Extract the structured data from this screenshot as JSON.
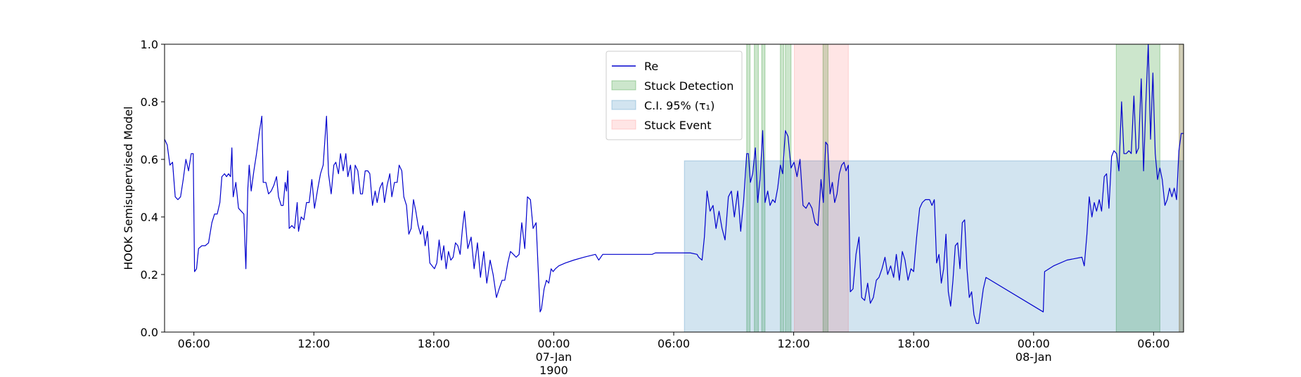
{
  "chart_data": {
    "type": "line",
    "y_label": "HOOK Semisupervised Model",
    "xlim": [
      "1900-01-06 04:32",
      "1900-01-08 07:30"
    ],
    "ylim": [
      0,
      1
    ],
    "yticks": [
      {
        "value": 0,
        "label": "0.0"
      },
      0.2,
      0.4,
      0.6,
      0.8,
      {
        "value": 1,
        "label": "1.0"
      }
    ],
    "xticks": [
      {
        "value": "1900-01-06 06:00",
        "label": "06:00"
      },
      {
        "value": "1900-01-06 12:00",
        "label": "12:00"
      },
      {
        "value": "1900-01-06 18:00",
        "label": "18:00"
      },
      {
        "value": "1900-01-07 00:00",
        "label": "00:00\n07-Jan\n1900"
      },
      {
        "value": "1900-01-07 06:00",
        "label": "06:00"
      },
      {
        "value": "1900-01-07 12:00",
        "label": "12:00"
      },
      {
        "value": "1900-01-07 18:00",
        "label": "18:00"
      },
      {
        "value": "1900-01-08 00:00",
        "label": "00:00\n08-Jan"
      },
      {
        "value": "1900-01-08 06:00",
        "label": "06:00"
      }
    ],
    "legend": "upper center",
    "series": [
      {
        "name": "Re",
        "type": "line",
        "color": "#0000cd",
        "x": [
          "1900-01-06 04:32",
          "1900-01-06 04:40",
          "1900-01-06 04:48",
          "1900-01-06 04:56",
          "1900-01-06 05:04",
          "1900-01-06 05:12",
          "1900-01-06 05:20",
          "1900-01-06 05:28",
          "1900-01-06 05:36",
          "1900-01-06 05:44",
          "1900-01-06 05:52",
          "1900-01-06 05:58",
          "1900-01-06 06:02",
          "1900-01-06 06:08",
          "1900-01-06 06:14",
          "1900-01-06 06:24",
          "1900-01-06 06:34",
          "1900-01-06 06:44",
          "1900-01-06 06:54",
          "1900-01-06 07:02",
          "1900-01-06 07:10",
          "1900-01-06 07:18",
          "1900-01-06 07:24",
          "1900-01-06 07:32",
          "1900-01-06 07:38",
          "1900-01-06 07:44",
          "1900-01-06 07:50",
          "1900-01-06 07:54",
          "1900-01-06 07:58",
          "1900-01-06 08:06",
          "1900-01-06 08:14",
          "1900-01-06 08:22",
          "1900-01-06 08:30",
          "1900-01-06 08:36",
          "1900-01-06 08:42",
          "1900-01-06 08:46",
          "1900-01-06 08:52",
          "1900-01-06 09:00",
          "1900-01-06 09:08",
          "1900-01-06 09:16",
          "1900-01-06 09:24",
          "1900-01-06 09:28",
          "1900-01-06 09:36",
          "1900-01-06 09:44",
          "1900-01-06 09:52",
          "1900-01-06 10:00",
          "1900-01-06 10:08",
          "1900-01-06 10:14",
          "1900-01-06 10:22",
          "1900-01-06 10:28",
          "1900-01-06 10:34",
          "1900-01-06 10:38",
          "1900-01-06 10:42",
          "1900-01-06 10:46",
          "1900-01-06 10:54",
          "1900-01-06 11:02",
          "1900-01-06 11:10",
          "1900-01-06 11:14",
          "1900-01-06 11:22",
          "1900-01-06 11:30",
          "1900-01-06 11:38",
          "1900-01-06 11:46",
          "1900-01-06 11:54",
          "1900-01-06 12:02",
          "1900-01-06 12:12",
          "1900-01-06 12:20",
          "1900-01-06 12:28",
          "1900-01-06 12:38",
          "1900-01-06 12:44",
          "1900-01-06 12:52",
          "1900-01-06 13:00",
          "1900-01-06 13:06",
          "1900-01-06 13:14",
          "1900-01-06 13:20",
          "1900-01-06 13:28",
          "1900-01-06 13:36",
          "1900-01-06 13:42",
          "1900-01-06 13:50",
          "1900-01-06 13:58",
          "1900-01-06 14:04",
          "1900-01-06 14:12",
          "1900-01-06 14:20",
          "1900-01-06 14:26",
          "1900-01-06 14:34",
          "1900-01-06 14:42",
          "1900-01-06 14:48",
          "1900-01-06 14:56",
          "1900-01-06 15:04",
          "1900-01-06 15:10",
          "1900-01-06 15:18",
          "1900-01-06 15:26",
          "1900-01-06 15:32",
          "1900-01-06 15:40",
          "1900-01-06 15:48",
          "1900-01-06 15:54",
          "1900-01-06 16:02",
          "1900-01-06 16:10",
          "1900-01-06 16:16",
          "1900-01-06 16:24",
          "1900-01-06 16:30",
          "1900-01-06 16:38",
          "1900-01-06 16:45",
          "1900-01-06 16:52",
          "1900-01-06 16:59",
          "1900-01-06 17:06",
          "1900-01-06 17:13",
          "1900-01-06 17:20",
          "1900-01-06 17:27",
          "1900-01-06 17:34",
          "1900-01-06 17:41",
          "1900-01-06 17:48",
          "1900-01-06 17:55",
          "1900-01-06 18:02",
          "1900-01-06 18:09",
          "1900-01-06 18:16",
          "1900-01-06 18:23",
          "1900-01-06 18:30",
          "1900-01-06 18:37",
          "1900-01-06 18:44",
          "1900-01-06 18:51",
          "1900-01-06 18:58",
          "1900-01-06 19:05",
          "1900-01-06 19:12",
          "1900-01-06 19:19",
          "1900-01-06 19:26",
          "1900-01-06 19:32",
          "1900-01-06 19:42",
          "1900-01-06 19:52",
          "1900-01-06 20:01",
          "1900-01-06 20:11",
          "1900-01-06 20:20",
          "1900-01-06 20:30",
          "1900-01-06 20:39",
          "1900-01-06 20:49",
          "1900-01-06 20:58",
          "1900-01-06 21:08",
          "1900-01-06 21:16",
          "1900-01-06 21:25",
          "1900-01-06 21:33",
          "1900-01-06 21:42",
          "1900-01-06 21:50",
          "1900-01-06 21:59",
          "1900-01-06 22:07",
          "1900-01-06 22:16",
          "1900-01-06 22:24",
          "1900-01-06 22:33",
          "1900-01-06 22:41",
          "1900-01-06 22:50",
          "1900-01-06 22:58",
          "1900-01-06 23:07",
          "1900-01-06 23:19",
          "1900-01-06 23:23",
          "1900-01-06 23:31",
          "1900-01-06 23:38",
          "1900-01-06 23:45",
          "1900-01-06 23:52",
          "1900-01-06 23:58",
          "1900-01-07 00:05",
          "1900-01-07 00:15",
          "1900-01-07 00:35",
          "1900-01-07 01:00",
          "1900-01-07 01:30",
          "1900-01-07 02:05",
          "1900-01-07 02:15",
          "1900-01-07 02:27",
          "1900-01-07 04:55",
          "1900-01-07 05:05",
          "1900-01-07 06:50",
          "1900-01-07 07:10",
          "1900-01-07 07:15",
          "1900-01-07 07:25",
          "1900-01-07 07:32",
          "1900-01-07 07:40",
          "1900-01-07 07:49",
          "1900-01-07 07:58",
          "1900-01-07 08:07",
          "1900-01-07 08:16",
          "1900-01-07 08:25",
          "1900-01-07 08:34",
          "1900-01-07 08:44",
          "1900-01-07 08:53",
          "1900-01-07 09:02",
          "1900-01-07 09:12",
          "1900-01-07 09:21",
          "1900-01-07 09:30",
          "1900-01-07 09:39",
          "1900-01-07 09:44",
          "1900-01-07 09:50",
          "1900-01-07 09:57",
          "1900-01-07 10:05",
          "1900-01-07 10:12",
          "1900-01-07 10:19",
          "1900-01-07 10:27",
          "1900-01-07 10:34",
          "1900-01-07 10:42",
          "1900-01-07 10:49",
          "1900-01-07 10:57",
          "1900-01-07 11:04",
          "1900-01-07 11:12",
          "1900-01-07 11:20",
          "1900-01-07 11:27",
          "1900-01-07 11:35",
          "1900-01-07 11:43",
          "1900-01-07 11:52",
          "1900-01-07 12:01",
          "1900-01-07 12:10",
          "1900-01-07 12:19",
          "1900-01-07 12:28",
          "1900-01-07 12:37",
          "1900-01-07 12:46",
          "1900-01-07 12:55",
          "1900-01-07 13:04",
          "1900-01-07 13:13",
          "1900-01-07 13:22",
          "1900-01-07 13:29",
          "1900-01-07 13:36",
          "1900-01-07 13:42",
          "1900-01-07 13:49",
          "1900-01-07 13:56",
          "1900-01-07 14:03",
          "1900-01-07 14:10",
          "1900-01-07 14:17",
          "1900-01-07 14:24",
          "1900-01-07 14:31",
          "1900-01-07 14:37",
          "1900-01-07 14:44",
          "1900-01-07 14:50",
          "1900-01-07 14:58",
          "1900-01-07 15:07",
          "1900-01-07 15:16",
          "1900-01-07 15:24",
          "1900-01-07 15:33",
          "1900-01-07 15:42",
          "1900-01-07 15:50",
          "1900-01-07 15:59",
          "1900-01-07 16:08",
          "1900-01-07 16:16",
          "1900-01-07 16:25",
          "1900-01-07 16:34",
          "1900-01-07 16:42",
          "1900-01-07 16:51",
          "1900-01-07 17:00",
          "1900-01-07 17:08",
          "1900-01-07 17:17",
          "1900-01-07 17:26",
          "1900-01-07 17:34",
          "1900-01-07 17:43",
          "1900-01-07 17:52",
          "1900-01-07 18:00",
          "1900-01-07 18:09",
          "1900-01-07 18:18",
          "1900-01-07 18:26",
          "1900-01-07 18:35",
          "1900-01-07 18:48",
          "1900-01-07 18:55",
          "1900-01-07 19:02",
          "1900-01-07 19:09",
          "1900-01-07 19:16",
          "1900-01-07 19:23",
          "1900-01-07 19:30",
          "1900-01-07 19:37",
          "1900-01-07 19:44",
          "1900-01-07 19:51",
          "1900-01-07 19:58",
          "1900-01-07 20:05",
          "1900-01-07 20:12",
          "1900-01-07 20:19",
          "1900-01-07 20:26",
          "1900-01-07 20:33",
          "1900-01-07 20:40",
          "1900-01-07 20:47",
          "1900-01-07 20:54",
          "1900-01-07 21:01",
          "1900-01-07 21:08",
          "1900-01-07 21:15",
          "1900-01-07 21:22",
          "1900-01-07 21:29",
          "1900-01-07 21:37",
          "1900-01-08 00:29",
          "1900-01-08 00:33",
          "1900-01-08 01:00",
          "1900-01-08 01:40",
          "1900-01-08 02:25",
          "1900-01-08 02:32",
          "1900-01-08 02:40",
          "1900-01-08 02:47",
          "1900-01-08 02:55",
          "1900-01-08 03:02",
          "1900-01-08 03:09",
          "1900-01-08 03:17",
          "1900-01-08 03:24",
          "1900-01-08 03:32",
          "1900-01-08 03:39",
          "1900-01-08 03:46",
          "1900-01-08 03:54",
          "1900-01-08 04:01",
          "1900-01-08 04:09",
          "1900-01-08 04:16",
          "1900-01-08 04:24",
          "1900-01-08 04:31",
          "1900-01-08 04:38",
          "1900-01-08 04:46",
          "1900-01-08 04:53",
          "1900-01-08 05:01",
          "1900-01-08 05:08",
          "1900-01-08 05:15",
          "1900-01-08 05:23",
          "1900-01-08 05:30",
          "1900-01-08 05:37",
          "1900-01-08 05:44",
          "1900-01-08 05:51",
          "1900-01-08 05:58",
          "1900-01-08 06:05",
          "1900-01-08 06:12",
          "1900-01-08 06:19",
          "1900-01-08 06:26",
          "1900-01-08 06:34",
          "1900-01-08 06:41",
          "1900-01-08 06:48",
          "1900-01-08 06:55",
          "1900-01-08 07:02",
          "1900-01-08 07:09",
          "1900-01-08 07:16",
          "1900-01-08 07:23",
          "1900-01-08 07:30"
        ],
        "values": [
          0.67,
          0.65,
          0.58,
          0.59,
          0.47,
          0.46,
          0.47,
          0.53,
          0.6,
          0.56,
          0.62,
          0.62,
          0.21,
          0.22,
          0.29,
          0.3,
          0.3,
          0.31,
          0.38,
          0.41,
          0.41,
          0.45,
          0.54,
          0.55,
          0.54,
          0.55,
          0.54,
          0.64,
          0.47,
          0.52,
          0.43,
          0.42,
          0.41,
          0.22,
          0.5,
          0.58,
          0.49,
          0.56,
          0.62,
          0.69,
          0.75,
          0.52,
          0.52,
          0.48,
          0.49,
          0.51,
          0.54,
          0.47,
          0.44,
          0.44,
          0.52,
          0.49,
          0.56,
          0.36,
          0.37,
          0.36,
          0.45,
          0.35,
          0.4,
          0.39,
          0.45,
          0.45,
          0.53,
          0.43,
          0.5,
          0.55,
          0.58,
          0.75,
          0.55,
          0.48,
          0.58,
          0.59,
          0.55,
          0.62,
          0.56,
          0.62,
          0.54,
          0.58,
          0.48,
          0.58,
          0.56,
          0.48,
          0.48,
          0.56,
          0.56,
          0.55,
          0.44,
          0.49,
          0.45,
          0.5,
          0.52,
          0.45,
          0.51,
          0.55,
          0.47,
          0.52,
          0.52,
          0.58,
          0.56,
          0.47,
          0.44,
          0.34,
          0.36,
          0.46,
          0.42,
          0.37,
          0.34,
          0.37,
          0.3,
          0.35,
          0.24,
          0.23,
          0.22,
          0.24,
          0.32,
          0.25,
          0.3,
          0.22,
          0.28,
          0.25,
          0.26,
          0.31,
          0.3,
          0.27,
          0.36,
          0.42,
          0.29,
          0.33,
          0.22,
          0.31,
          0.19,
          0.28,
          0.17,
          0.25,
          0.2,
          0.12,
          0.15,
          0.18,
          0.18,
          0.24,
          0.28,
          0.27,
          0.26,
          0.27,
          0.38,
          0.29,
          0.47,
          0.46,
          0.36,
          0.38,
          0.07,
          0.08,
          0.15,
          0.18,
          0.17,
          0.22,
          0.21,
          0.22,
          0.23,
          0.24,
          0.25,
          0.26,
          0.27,
          0.25,
          0.27,
          0.27,
          0.275,
          0.275,
          0.27,
          0.26,
          0.25,
          0.33,
          0.49,
          0.42,
          0.44,
          0.36,
          0.42,
          0.36,
          0.32,
          0.47,
          0.49,
          0.4,
          0.49,
          0.35,
          0.46,
          0.62,
          0.62,
          0.52,
          0.55,
          0.64,
          0.45,
          0.53,
          0.7,
          0.45,
          0.49,
          0.44,
          0.46,
          0.45,
          0.5,
          0.58,
          0.55,
          0.7,
          0.68,
          0.57,
          0.59,
          0.54,
          0.6,
          0.44,
          0.43,
          0.45,
          0.43,
          0.38,
          0.37,
          0.53,
          0.45,
          0.66,
          0.65,
          0.48,
          0.52,
          0.45,
          0.48,
          0.55,
          0.58,
          0.59,
          0.56,
          0.58,
          0.14,
          0.15,
          0.27,
          0.33,
          0.12,
          0.11,
          0.17,
          0.1,
          0.12,
          0.18,
          0.19,
          0.22,
          0.26,
          0.2,
          0.23,
          0.19,
          0.27,
          0.18,
          0.28,
          0.25,
          0.18,
          0.22,
          0.21,
          0.33,
          0.43,
          0.45,
          0.46,
          0.46,
          0.44,
          0.46,
          0.24,
          0.27,
          0.17,
          0.22,
          0.34,
          0.14,
          0.09,
          0.18,
          0.3,
          0.31,
          0.22,
          0.38,
          0.39,
          0.22,
          0.12,
          0.14,
          0.06,
          0.03,
          0.03,
          0.09,
          0.15,
          0.19,
          0.07,
          0.21,
          0.23,
          0.25,
          0.26,
          0.23,
          0.34,
          0.47,
          0.4,
          0.45,
          0.42,
          0.46,
          0.42,
          0.54,
          0.55,
          0.43,
          0.61,
          0.63,
          0.62,
          0.56,
          0.8,
          0.62,
          0.62,
          0.63,
          0.62,
          0.82,
          0.62,
          0.64,
          0.88,
          0.56,
          0.8,
          1.0,
          0.67,
          0.9,
          0.62,
          0.53,
          0.57,
          0.53,
          0.44,
          0.46,
          0.5,
          0.47,
          0.5,
          0.46,
          0.63,
          0.69,
          0.69
        ]
      },
      {
        "name": "Stuck Detection",
        "type": "span",
        "color": "green",
        "alpha": 0.2,
        "spans": [
          {
            "x": [
              "1900-01-07 09:39",
              "1900-01-07 09:49"
            ]
          },
          {
            "x": [
              "1900-01-07 10:02",
              "1900-01-07 10:14"
            ]
          },
          {
            "x": [
              "1900-01-07 10:24",
              "1900-01-07 10:34"
            ]
          },
          {
            "x": [
              "1900-01-07 11:20",
              "1900-01-07 11:30"
            ]
          },
          {
            "x": [
              "1900-01-07 11:35",
              "1900-01-07 11:52"
            ]
          },
          {
            "x": [
              "1900-01-07 13:28",
              "1900-01-07 13:43"
            ]
          },
          {
            "x": [
              "1900-01-08 04:08",
              "1900-01-08 06:19"
            ]
          },
          {
            "x": [
              "1900-01-08 07:17",
              "1900-01-08 07:30"
            ]
          }
        ]
      },
      {
        "name": "C.I. 95% (τ₁)",
        "type": "span",
        "color": "#1f77b4",
        "alpha": 0.2,
        "spans": [
          {
            "x": [
              "1900-01-07 06:32",
              "1900-01-08 07:30"
            ],
            "y": [
              0,
              0.595
            ]
          }
        ]
      },
      {
        "name": "Stuck Event",
        "type": "span",
        "color": "red",
        "alpha": 0.1,
        "spans": [
          {
            "x": [
              "1900-01-07 12:02",
              "1900-01-07 14:44"
            ]
          },
          {
            "x": [
              "1900-01-08 07:17",
              "1900-01-08 07:30"
            ]
          }
        ]
      }
    ]
  }
}
